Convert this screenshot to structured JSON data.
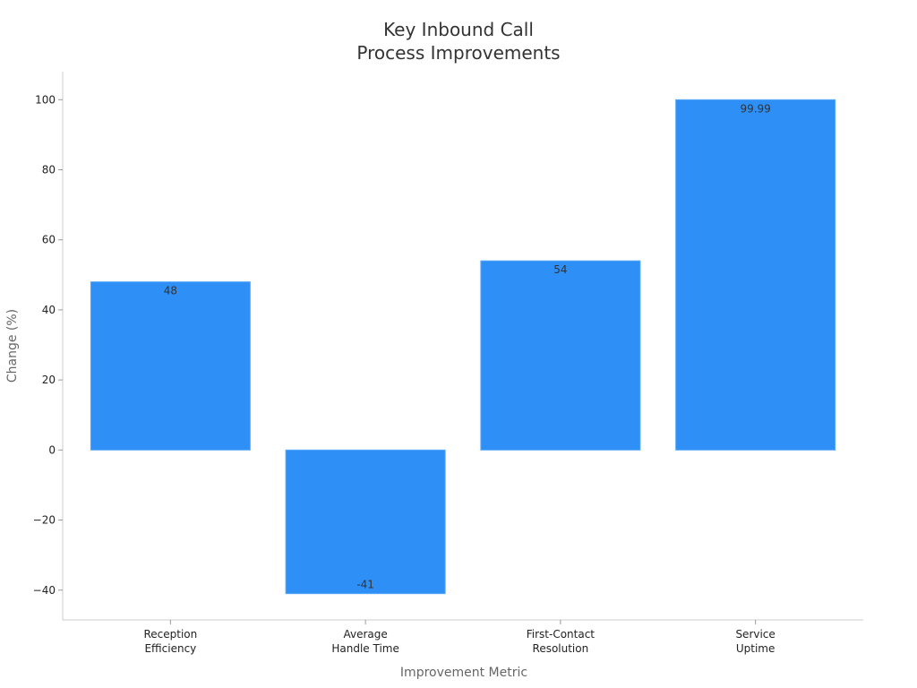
{
  "chart_data": {
    "type": "bar",
    "title_lines": [
      "Key Inbound Call",
      "Process Improvements"
    ],
    "xlabel": "Improvement Metric",
    "ylabel": "Change (%)",
    "categories": [
      [
        "Reception",
        "Efficiency"
      ],
      [
        "Average",
        "Handle Time"
      ],
      [
        "First-Contact",
        "Resolution"
      ],
      [
        "Service",
        "Uptime"
      ]
    ],
    "values": [
      48,
      -41,
      54,
      99.99
    ],
    "value_labels": [
      "48",
      "-41",
      "54",
      "99.99"
    ],
    "ylim": [
      -48.5,
      108
    ],
    "yticks": [
      -40,
      -20,
      0,
      20,
      40,
      60,
      80,
      100
    ],
    "ytick_labels": [
      "−40",
      "−20",
      "0",
      "20",
      "40",
      "60",
      "80",
      "100"
    ],
    "grid": false,
    "bar_color": "#2e8ff7"
  }
}
